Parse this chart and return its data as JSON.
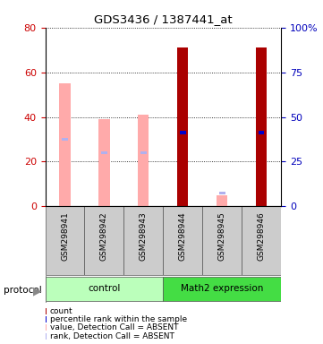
{
  "title": "GDS3436 / 1387441_at",
  "samples": [
    "GSM298941",
    "GSM298942",
    "GSM298943",
    "GSM298944",
    "GSM298945",
    "GSM298946"
  ],
  "groups": [
    "control",
    "control",
    "control",
    "Math2 expression",
    "Math2 expression",
    "Math2 expression"
  ],
  "absent": [
    true,
    true,
    true,
    false,
    true,
    false
  ],
  "value_bars": [
    55,
    39,
    41,
    71,
    5,
    71
  ],
  "rank_bars": [
    30,
    24,
    24,
    33,
    6,
    33
  ],
  "value_color_present": "#aa0000",
  "value_color_absent": "#ffaaaa",
  "rank_color_present": "#0000cc",
  "rank_color_absent": "#b0b0ee",
  "ylim_left": [
    0,
    80
  ],
  "ylim_right": [
    0,
    100
  ],
  "yticks_left": [
    0,
    20,
    40,
    60,
    80
  ],
  "yticks_right": [
    0,
    25,
    50,
    75,
    100
  ],
  "ylabel_left_color": "#cc0000",
  "ylabel_right_color": "#0000bb",
  "group_colors": {
    "control": "#bbffbb",
    "Math2 expression": "#44dd44"
  },
  "protocol_label": "protocol",
  "legend_items": [
    {
      "color": "#aa0000",
      "label": "count"
    },
    {
      "color": "#0000cc",
      "label": "percentile rank within the sample"
    },
    {
      "color": "#ffaaaa",
      "label": "value, Detection Call = ABSENT"
    },
    {
      "color": "#b0b0ee",
      "label": "rank, Detection Call = ABSENT"
    }
  ]
}
